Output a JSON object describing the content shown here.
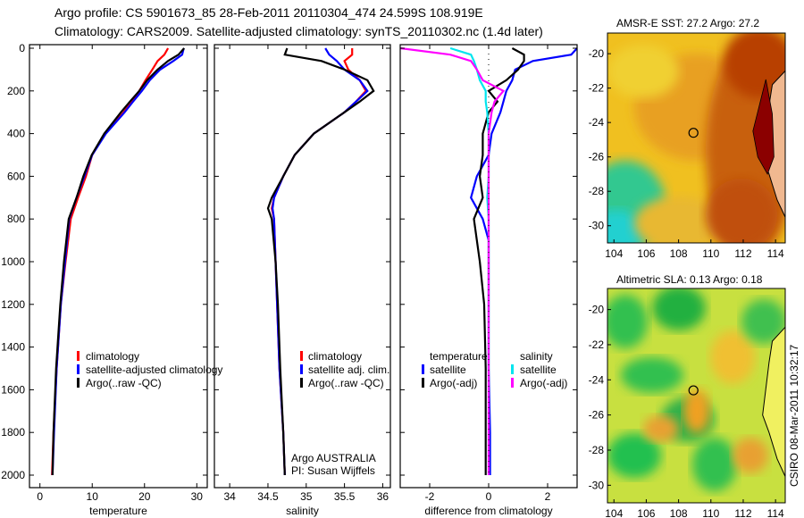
{
  "title_line1": "Argo profile: CS 5901673_85 28-Feb-2011 20110304_474 24.599S 108.919E",
  "title_line2": "Climatology: CARS2009. Satellite-adjusted climatology: synTS_20110302.nc (1.4d later)",
  "colors": {
    "climatology": "#ff0000",
    "satellite": "#0000ff",
    "argo": "#000000",
    "sal_satellite": "#00e5ee",
    "sal_argo": "#ff00ff"
  },
  "chart_data": [
    {
      "type": "line",
      "id": "temperature",
      "xlabel": "temperature",
      "ylabel": "",
      "xlim": [
        -2,
        32
      ],
      "ylim": [
        2000,
        0
      ],
      "xticks": [
        "0",
        "10",
        "20",
        "30"
      ],
      "xtick_values": [
        0,
        10,
        20,
        30
      ],
      "yticks": [
        "0",
        "200",
        "400",
        "600",
        "800",
        "1000",
        "1200",
        "1400",
        "1600",
        "1800",
        "2000"
      ],
      "legend": [
        "climatology",
        "satellite-adjusted climatology",
        "Argo(..raw -QC)"
      ],
      "depth": [
        0,
        30,
        60,
        100,
        150,
        200,
        250,
        300,
        400,
        500,
        600,
        700,
        800,
        1000,
        1200,
        1500,
        1800,
        2000
      ],
      "series": [
        {
          "name": "climatology",
          "values": [
            24.5,
            23.8,
            22.5,
            21.5,
            20.2,
            19.0,
            17.5,
            16.0,
            12.5,
            10.0,
            8.8,
            7.3,
            5.9,
            4.9,
            4.0,
            3.2,
            2.6,
            2.3
          ]
        },
        {
          "name": "satellite",
          "values": [
            27.5,
            27.2,
            25.5,
            23.0,
            21.0,
            19.5,
            17.8,
            16.2,
            12.6,
            10.0,
            8.5,
            7.0,
            5.6,
            4.8,
            4.0,
            3.2,
            2.7,
            2.4
          ]
        },
        {
          "name": "argo",
          "values": [
            27.6,
            26.5,
            24.5,
            22.5,
            20.5,
            19.0,
            17.2,
            15.5,
            12.3,
            9.9,
            8.3,
            7.0,
            5.5,
            4.6,
            3.9,
            3.1,
            2.6,
            2.4
          ]
        }
      ]
    },
    {
      "type": "line",
      "id": "salinity",
      "xlabel": "salinity",
      "xlim": [
        33.8,
        36.1
      ],
      "ylim": [
        2000,
        0
      ],
      "xticks": [
        "34",
        "34.5",
        "35",
        "35.5",
        "36"
      ],
      "xtick_values": [
        34,
        34.5,
        35,
        35.5,
        36
      ],
      "legend": [
        "climatology",
        "satellite adj. clim.",
        "Argo(..raw -QC)"
      ],
      "annotation": [
        "Argo AUSTRALIA",
        "PI: Susan Wijffels"
      ],
      "depth": [
        0,
        30,
        60,
        100,
        150,
        200,
        250,
        300,
        400,
        500,
        600,
        700,
        750,
        800,
        1000,
        1200,
        1500,
        1800,
        2000
      ],
      "series": [
        {
          "name": "climatology",
          "values": [
            35.6,
            35.6,
            35.5,
            35.55,
            35.7,
            35.78,
            35.65,
            35.5,
            35.1,
            34.85,
            34.7,
            34.58,
            34.55,
            34.58,
            34.6,
            34.62,
            34.65,
            34.7,
            34.72
          ]
        },
        {
          "name": "satellite",
          "values": [
            35.25,
            35.3,
            35.4,
            35.5,
            35.7,
            35.8,
            35.65,
            35.5,
            35.1,
            34.85,
            34.7,
            34.58,
            34.56,
            34.58,
            34.6,
            34.62,
            34.65,
            34.7,
            34.72
          ]
        },
        {
          "name": "argo",
          "values": [
            34.75,
            34.72,
            35.2,
            35.5,
            35.8,
            35.88,
            35.7,
            35.5,
            35.1,
            34.85,
            34.7,
            34.55,
            34.5,
            34.55,
            34.6,
            34.63,
            34.66,
            34.7,
            34.72
          ]
        }
      ]
    },
    {
      "type": "line",
      "id": "difference",
      "xlabel": "difference from climatology",
      "xlim": [
        -3,
        3
      ],
      "ylim": [
        2000,
        0
      ],
      "xticks": [
        "-2",
        "0",
        "2"
      ],
      "xtick_values": [
        -2,
        0,
        2
      ],
      "legend": {
        "temperature_title": "temperature",
        "salinity_title": "salinity",
        "items": [
          "satellite",
          "Argo(-adj)",
          "satellite",
          "Argo(-adj)"
        ]
      },
      "depth": [
        0,
        30,
        60,
        100,
        150,
        200,
        250,
        300,
        400,
        500,
        600,
        700,
        800,
        900,
        1000,
        1200,
        1500,
        1800,
        2000
      ],
      "series": [
        {
          "name": "temperature satellite",
          "values": [
            3.0,
            2.8,
            1.5,
            0.9,
            0.8,
            0.6,
            0.5,
            0.4,
            0.1,
            0.0,
            -0.4,
            -0.6,
            -0.2,
            0.0,
            0.0,
            0.0,
            0.0,
            0.05,
            0.05
          ]
        },
        {
          "name": "temperature argo",
          "values": [
            0.8,
            1.2,
            1.2,
            1.0,
            0.6,
            0.0,
            0.3,
            0.0,
            -0.2,
            -0.2,
            -0.3,
            -0.2,
            -0.5,
            -0.4,
            -0.3,
            -0.15,
            -0.1,
            -0.1,
            -0.1
          ]
        },
        {
          "name": "salinity satellite",
          "values": [
            -1.3,
            -0.6,
            -0.5,
            -0.4,
            -0.3,
            -0.1,
            -0.1,
            -0.05,
            0.0,
            0.0,
            0.0,
            -0.05,
            0.0,
            0.0,
            0.0,
            0.0,
            0.0,
            0.0,
            0.0
          ]
        },
        {
          "name": "salinity argo",
          "values": [
            -3.0,
            -1.3,
            -0.6,
            -0.4,
            -0.2,
            0.5,
            0.2,
            0.1,
            0.0,
            0.0,
            0.0,
            0.0,
            0.0,
            0.0,
            0.0,
            0.0,
            0.0,
            0.0,
            0.0
          ]
        }
      ]
    },
    {
      "type": "heatmap",
      "id": "sst_map",
      "title": "AMSR-E SST: 27.2 Argo: 27.2",
      "xticks": [
        "104",
        "106",
        "108",
        "110",
        "112",
        "114"
      ],
      "yticks": [
        "-20",
        "-22",
        "-24",
        "-26",
        "-28",
        "-30"
      ],
      "xlim": [
        103.6,
        114.6
      ],
      "ylim": [
        -31,
        -18.8
      ],
      "argo_position": [
        108.919,
        -24.599
      ]
    },
    {
      "type": "heatmap",
      "id": "sla_map",
      "title": "Altimetric SLA: 0.13 Argo: 0.18",
      "xticks": [
        "104",
        "106",
        "108",
        "110",
        "112",
        "114"
      ],
      "yticks": [
        "-20",
        "-22",
        "-24",
        "-26",
        "-28",
        "-30"
      ],
      "xlim": [
        103.6,
        114.6
      ],
      "ylim": [
        -31,
        -18.8
      ],
      "argo_position": [
        108.919,
        -24.599
      ],
      "side_label": "CSIRO 08-Mar-2011 10:32:17"
    }
  ]
}
